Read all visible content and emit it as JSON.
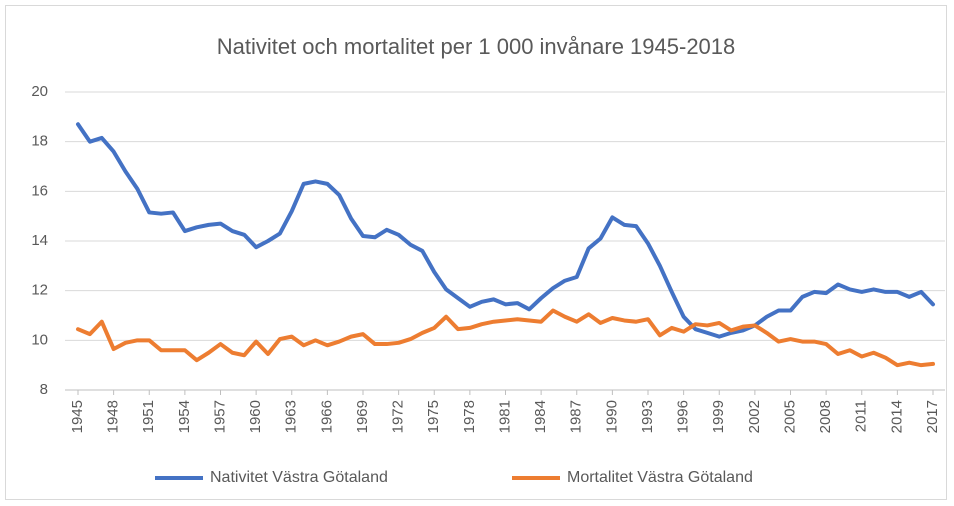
{
  "chart_data": {
    "type": "line",
    "title": "Nativitet och mortalitet per 1 000 invånare 1945-2018",
    "x": [
      1945,
      1946,
      1947,
      1948,
      1949,
      1950,
      1951,
      1952,
      1953,
      1954,
      1955,
      1956,
      1957,
      1958,
      1959,
      1960,
      1961,
      1962,
      1963,
      1964,
      1965,
      1966,
      1967,
      1968,
      1969,
      1970,
      1971,
      1972,
      1973,
      1974,
      1975,
      1976,
      1977,
      1978,
      1979,
      1980,
      1981,
      1982,
      1983,
      1984,
      1985,
      1986,
      1987,
      1988,
      1989,
      1990,
      1991,
      1992,
      1993,
      1994,
      1995,
      1996,
      1997,
      1998,
      1999,
      2000,
      2001,
      2002,
      2003,
      2004,
      2005,
      2006,
      2007,
      2008,
      2009,
      2010,
      2011,
      2012,
      2013,
      2014,
      2015,
      2016,
      2017
    ],
    "xlim": [
      1945,
      2017
    ],
    "xticks": [
      1945,
      1948,
      1951,
      1954,
      1957,
      1960,
      1963,
      1966,
      1969,
      1972,
      1975,
      1978,
      1981,
      1984,
      1987,
      1990,
      1993,
      1996,
      1999,
      2002,
      2005,
      2008,
      2011,
      2014,
      2017
    ],
    "ylim": [
      8,
      20
    ],
    "yticks": [
      8,
      10,
      12,
      14,
      16,
      18,
      20
    ],
    "grid": true,
    "legend": "bottom",
    "series": [
      {
        "name": "Nativitet Västra Götaland",
        "color": "#4472c4",
        "values": [
          18.7,
          18.0,
          18.15,
          17.6,
          16.8,
          16.1,
          15.15,
          15.1,
          15.15,
          14.4,
          14.55,
          14.65,
          14.7,
          14.4,
          14.25,
          13.75,
          14.0,
          14.3,
          15.2,
          16.3,
          16.4,
          16.3,
          15.85,
          14.9,
          14.2,
          14.15,
          14.45,
          14.25,
          13.85,
          13.6,
          12.75,
          12.05,
          11.7,
          11.35,
          11.55,
          11.65,
          11.45,
          11.5,
          11.25,
          11.7,
          12.1,
          12.4,
          12.55,
          13.7,
          14.1,
          14.95,
          14.65,
          14.6,
          13.9,
          13.0,
          11.95,
          10.95,
          10.45,
          10.3,
          10.15,
          10.3,
          10.4,
          10.6,
          10.95,
          11.2,
          11.2,
          11.75,
          11.95,
          11.9,
          12.25,
          12.05,
          11.95,
          12.05,
          11.95,
          11.95,
          11.75,
          11.95,
          11.45
        ]
      },
      {
        "name": "Mortalitet Västra Götaland",
        "color": "#ed7d31",
        "values": [
          10.45,
          10.25,
          10.75,
          9.65,
          9.9,
          10.0,
          10.0,
          9.6,
          9.6,
          9.6,
          9.2,
          9.5,
          9.85,
          9.5,
          9.4,
          9.95,
          9.45,
          10.05,
          10.15,
          9.8,
          10.0,
          9.8,
          9.95,
          10.15,
          10.25,
          9.85,
          9.85,
          9.9,
          10.05,
          10.3,
          10.5,
          10.95,
          10.45,
          10.5,
          10.65,
          10.75,
          10.8,
          10.85,
          10.8,
          10.75,
          11.2,
          10.95,
          10.75,
          11.05,
          10.7,
          10.9,
          10.8,
          10.75,
          10.85,
          10.2,
          10.5,
          10.35,
          10.65,
          10.6,
          10.7,
          10.4,
          10.55,
          10.6,
          10.3,
          9.95,
          10.05,
          9.95,
          9.95,
          9.85,
          9.45,
          9.6,
          9.35,
          9.5,
          9.3,
          9.0,
          9.1,
          9.0,
          9.05
        ]
      }
    ]
  }
}
